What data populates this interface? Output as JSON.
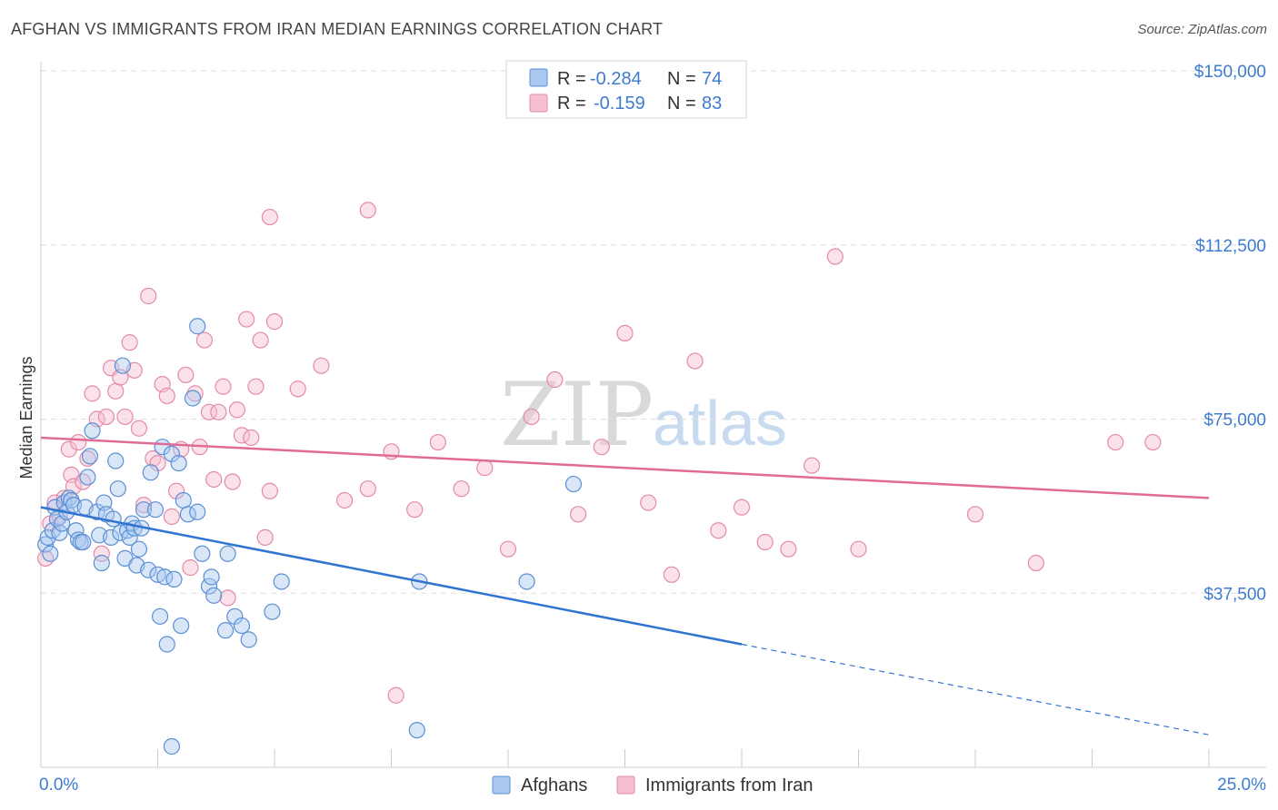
{
  "header": {
    "title": "AFGHAN VS IMMIGRANTS FROM IRAN MEDIAN EARNINGS CORRELATION CHART",
    "source": "Source: ZipAtlas.com"
  },
  "legend_top": {
    "rows": [
      {
        "r_label": "R =",
        "r_value": "-0.284",
        "n_label": "N =",
        "n_value": "74"
      },
      {
        "r_label": "R =",
        "r_value": "-0.159",
        "n_label": "N =",
        "n_value": "83"
      }
    ]
  },
  "watermark": {
    "zip": "ZIP",
    "atlas": "atlas"
  },
  "colors": {
    "afghans_fill": "#a9c8ef",
    "afghans_stroke": "#5b8fd4",
    "afghans_line": "#2f74d0",
    "iran_fill": "#f6bfd0",
    "iran_stroke": "#e38aa8",
    "iran_line": "#e06b96",
    "tick_label": "#3d7bd0",
    "grid": "#dddddd"
  },
  "chart_data": {
    "type": "scatter",
    "title": "AFGHAN VS IMMIGRANTS FROM IRAN MEDIAN EARNINGS CORRELATION CHART",
    "xlabel": "",
    "ylabel": "Median Earnings",
    "xlim": [
      0,
      25
    ],
    "ylim": [
      0,
      150000
    ],
    "x_tick_labels": [
      "0.0%",
      "25.0%"
    ],
    "y_ticks": [
      37500,
      75000,
      112500,
      150000
    ],
    "y_tick_labels": [
      "$37,500",
      "$75,000",
      "$112,500",
      "$150,000"
    ],
    "grid": true,
    "legend_position": "bottom",
    "series": [
      {
        "name": "Afghans",
        "r": -0.284,
        "n": 74,
        "trend": {
          "x": [
            0,
            15
          ],
          "y": [
            56000,
            26500
          ],
          "dashed_to_x": 25,
          "dashed_end_y": 7000
        },
        "points": [
          [
            0.1,
            48000
          ],
          [
            0.15,
            49500
          ],
          [
            0.2,
            46000
          ],
          [
            0.25,
            51000
          ],
          [
            0.3,
            56000
          ],
          [
            0.35,
            53500
          ],
          [
            0.4,
            50500
          ],
          [
            0.45,
            52500
          ],
          [
            0.5,
            57000
          ],
          [
            0.55,
            55000
          ],
          [
            0.6,
            58000
          ],
          [
            0.65,
            57500
          ],
          [
            0.7,
            56500
          ],
          [
            0.75,
            51000
          ],
          [
            0.8,
            49000
          ],
          [
            0.85,
            48500
          ],
          [
            0.9,
            48500
          ],
          [
            0.95,
            56000
          ],
          [
            1.0,
            62500
          ],
          [
            1.05,
            67000
          ],
          [
            1.1,
            72500
          ],
          [
            1.2,
            55000
          ],
          [
            1.25,
            50000
          ],
          [
            1.3,
            44000
          ],
          [
            1.35,
            57000
          ],
          [
            1.4,
            54500
          ],
          [
            1.5,
            49500
          ],
          [
            1.55,
            53500
          ],
          [
            1.6,
            66000
          ],
          [
            1.65,
            60000
          ],
          [
            1.7,
            50500
          ],
          [
            1.75,
            86500
          ],
          [
            1.8,
            45000
          ],
          [
            1.85,
            51000
          ],
          [
            1.9,
            49500
          ],
          [
            1.95,
            52500
          ],
          [
            2.0,
            51500
          ],
          [
            2.05,
            43500
          ],
          [
            2.1,
            47000
          ],
          [
            2.15,
            51500
          ],
          [
            2.2,
            55500
          ],
          [
            2.3,
            42500
          ],
          [
            2.35,
            63500
          ],
          [
            2.45,
            55500
          ],
          [
            2.5,
            41500
          ],
          [
            2.55,
            32500
          ],
          [
            2.6,
            69000
          ],
          [
            2.65,
            41000
          ],
          [
            2.7,
            26500
          ],
          [
            2.8,
            67500
          ],
          [
            2.85,
            40500
          ],
          [
            2.95,
            65500
          ],
          [
            3.0,
            30500
          ],
          [
            3.05,
            57500
          ],
          [
            3.15,
            54500
          ],
          [
            3.25,
            79500
          ],
          [
            3.35,
            55000
          ],
          [
            3.45,
            46000
          ],
          [
            3.6,
            39000
          ],
          [
            3.65,
            41000
          ],
          [
            3.7,
            37000
          ],
          [
            3.95,
            29500
          ],
          [
            4.0,
            46000
          ],
          [
            4.15,
            32500
          ],
          [
            4.3,
            30500
          ],
          [
            4.45,
            27500
          ],
          [
            4.95,
            33500
          ],
          [
            5.15,
            40000
          ],
          [
            3.35,
            95000
          ],
          [
            8.05,
            8000
          ],
          [
            2.8,
            4500
          ],
          [
            8.1,
            40000
          ],
          [
            10.4,
            40000
          ],
          [
            11.4,
            61000
          ]
        ]
      },
      {
        "name": "Immigrants from Iran",
        "r": -0.159,
        "n": 83,
        "trend": {
          "x": [
            0,
            25
          ],
          "y": [
            71000,
            58000
          ]
        },
        "points": [
          [
            0.1,
            45000
          ],
          [
            0.2,
            52500
          ],
          [
            0.3,
            57000
          ],
          [
            0.4,
            54000
          ],
          [
            0.5,
            58000
          ],
          [
            0.6,
            68500
          ],
          [
            0.65,
            63000
          ],
          [
            0.7,
            60500
          ],
          [
            0.8,
            70000
          ],
          [
            0.9,
            61500
          ],
          [
            1.0,
            66500
          ],
          [
            1.1,
            80500
          ],
          [
            1.2,
            75000
          ],
          [
            1.3,
            46000
          ],
          [
            1.4,
            75500
          ],
          [
            1.5,
            86000
          ],
          [
            1.6,
            81000
          ],
          [
            1.7,
            84000
          ],
          [
            1.8,
            75500
          ],
          [
            1.9,
            91500
          ],
          [
            2.0,
            85500
          ],
          [
            2.1,
            73000
          ],
          [
            2.2,
            56500
          ],
          [
            2.3,
            101500
          ],
          [
            2.4,
            66500
          ],
          [
            2.5,
            65500
          ],
          [
            2.6,
            82500
          ],
          [
            2.7,
            80000
          ],
          [
            2.8,
            54000
          ],
          [
            2.9,
            59500
          ],
          [
            3.0,
            68500
          ],
          [
            3.1,
            84500
          ],
          [
            3.2,
            43000
          ],
          [
            3.3,
            80500
          ],
          [
            3.4,
            69000
          ],
          [
            3.5,
            92000
          ],
          [
            3.6,
            76500
          ],
          [
            3.7,
            62000
          ],
          [
            3.8,
            76500
          ],
          [
            3.9,
            82000
          ],
          [
            4.0,
            36500
          ],
          [
            4.1,
            61500
          ],
          [
            4.2,
            77000
          ],
          [
            4.3,
            71500
          ],
          [
            4.4,
            96500
          ],
          [
            4.5,
            71000
          ],
          [
            4.6,
            82000
          ],
          [
            4.7,
            92000
          ],
          [
            4.8,
            49500
          ],
          [
            4.9,
            59500
          ],
          [
            5.0,
            96000
          ],
          [
            5.5,
            81500
          ],
          [
            6.0,
            86500
          ],
          [
            6.5,
            57500
          ],
          [
            7.0,
            60000
          ],
          [
            7.5,
            68000
          ],
          [
            8.0,
            55500
          ],
          [
            8.5,
            70000
          ],
          [
            9.0,
            60000
          ],
          [
            9.5,
            64500
          ],
          [
            10.0,
            47000
          ],
          [
            10.5,
            75500
          ],
          [
            11.0,
            83500
          ],
          [
            11.5,
            54500
          ],
          [
            12.0,
            69000
          ],
          [
            12.5,
            93500
          ],
          [
            13.0,
            57000
          ],
          [
            13.5,
            41500
          ],
          [
            14.0,
            87500
          ],
          [
            14.5,
            51000
          ],
          [
            15.0,
            56000
          ],
          [
            15.5,
            48500
          ],
          [
            16.0,
            47000
          ],
          [
            16.5,
            65000
          ],
          [
            17.0,
            110000
          ],
          [
            17.5,
            47000
          ],
          [
            20.0,
            54500
          ],
          [
            23.0,
            70000
          ],
          [
            23.8,
            70000
          ],
          [
            21.3,
            44000
          ],
          [
            4.9,
            118500
          ],
          [
            7.0,
            120000
          ],
          [
            7.6,
            15500
          ]
        ]
      }
    ]
  }
}
